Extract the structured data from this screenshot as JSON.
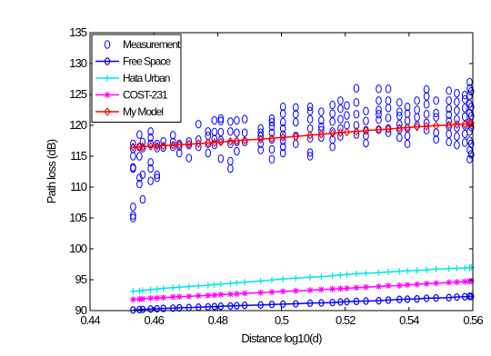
{
  "chart_data": {
    "type": "scatter",
    "title": "",
    "xlabel": "Distance log10(d)",
    "ylabel": "Path loss (dB)",
    "xlim": [
      0.44,
      0.56
    ],
    "ylim": [
      90,
      135
    ],
    "xticks": [
      0.44,
      0.46,
      0.48,
      0.5,
      0.52,
      0.54,
      0.56
    ],
    "xtick_labels": [
      "0.44",
      "0.46",
      "0.48",
      "0.5",
      "0.52",
      "0.54",
      "0.56"
    ],
    "yticks": [
      90,
      95,
      100,
      105,
      110,
      115,
      120,
      125,
      130,
      135
    ],
    "ytick_labels": [
      "90",
      "95",
      "100",
      "105",
      "110",
      "115",
      "120",
      "125",
      "130",
      "135"
    ],
    "grid": false,
    "legend_position": "top-left",
    "series": [
      {
        "name": "Measurement",
        "color": "#0000ff",
        "marker": "circle",
        "line": false,
        "points": [
          [
            0.4535,
            106.8
          ],
          [
            0.4535,
            105.4
          ],
          [
            0.4535,
            105.0
          ],
          [
            0.4535,
            113.2
          ],
          [
            0.4535,
            113.0
          ],
          [
            0.4535,
            117.0
          ],
          [
            0.4535,
            116.2
          ],
          [
            0.4535,
            115.0
          ],
          [
            0.4555,
            111.5
          ],
          [
            0.4555,
            110.5
          ],
          [
            0.4555,
            115.0
          ],
          [
            0.4555,
            116.5
          ],
          [
            0.4555,
            118.5
          ],
          [
            0.4565,
            108.0
          ],
          [
            0.4565,
            112.0
          ],
          [
            0.4565,
            116.3
          ],
          [
            0.4565,
            117.3
          ],
          [
            0.459,
            113.0
          ],
          [
            0.459,
            114.0
          ],
          [
            0.459,
            111.0
          ],
          [
            0.459,
            117.0
          ],
          [
            0.459,
            118.0
          ],
          [
            0.459,
            119.0
          ],
          [
            0.461,
            111.5
          ],
          [
            0.461,
            112.0
          ],
          [
            0.461,
            116.3
          ],
          [
            0.461,
            117.0
          ],
          [
            0.463,
            116.4
          ],
          [
            0.463,
            117.4
          ],
          [
            0.466,
            117.3
          ],
          [
            0.466,
            116.5
          ],
          [
            0.466,
            118.4
          ],
          [
            0.468,
            116.6
          ],
          [
            0.468,
            117.0
          ],
          [
            0.468,
            115.5
          ],
          [
            0.471,
            116.8
          ],
          [
            0.471,
            114.7
          ],
          [
            0.471,
            117.4
          ],
          [
            0.474,
            117.7
          ],
          [
            0.474,
            116.5
          ],
          [
            0.474,
            120.2
          ],
          [
            0.477,
            117.0
          ],
          [
            0.477,
            118.3
          ],
          [
            0.477,
            119.0
          ],
          [
            0.477,
            115.5
          ],
          [
            0.479,
            116.8
          ],
          [
            0.479,
            117.8
          ],
          [
            0.479,
            118.9
          ],
          [
            0.479,
            120.8
          ],
          [
            0.481,
            120.7
          ],
          [
            0.481,
            121.1
          ],
          [
            0.481,
            118.9
          ],
          [
            0.481,
            117.6
          ],
          [
            0.481,
            114.6
          ],
          [
            0.484,
            113.0
          ],
          [
            0.484,
            114.2
          ],
          [
            0.484,
            117.0
          ],
          [
            0.484,
            119.0
          ],
          [
            0.484,
            120.6
          ],
          [
            0.486,
            115.8
          ],
          [
            0.486,
            117.3
          ],
          [
            0.486,
            118.8
          ],
          [
            0.486,
            120.8
          ],
          [
            0.4885,
            117.3
          ],
          [
            0.4885,
            118.8
          ],
          [
            0.4885,
            121.0
          ],
          [
            0.4935,
            117.0
          ],
          [
            0.4935,
            118.2
          ],
          [
            0.4935,
            119.5
          ],
          [
            0.4935,
            116.0
          ],
          [
            0.4935,
            118.8
          ],
          [
            0.497,
            114.5
          ],
          [
            0.497,
            116.1
          ],
          [
            0.497,
            117.7
          ],
          [
            0.497,
            118.8
          ],
          [
            0.497,
            119.8
          ],
          [
            0.497,
            121.1
          ],
          [
            0.497,
            120.5
          ],
          [
            0.5005,
            115.5
          ],
          [
            0.5005,
            116.5
          ],
          [
            0.5005,
            117.5
          ],
          [
            0.5005,
            118.5
          ],
          [
            0.5005,
            119.5
          ],
          [
            0.5005,
            120.5
          ],
          [
            0.5005,
            121.9
          ],
          [
            0.5005,
            123.0
          ],
          [
            0.5045,
            117.0
          ],
          [
            0.5045,
            118.3
          ],
          [
            0.5045,
            120.5
          ],
          [
            0.5045,
            121.8
          ],
          [
            0.5045,
            122.9
          ],
          [
            0.509,
            115.0
          ],
          [
            0.509,
            115.6
          ],
          [
            0.509,
            117.9
          ],
          [
            0.509,
            119.5
          ],
          [
            0.509,
            121.0
          ],
          [
            0.509,
            122.3
          ],
          [
            0.509,
            123.0
          ],
          [
            0.5125,
            118.0
          ],
          [
            0.5125,
            119.2
          ],
          [
            0.5125,
            119.8
          ],
          [
            0.5125,
            120.8
          ],
          [
            0.5125,
            122.2
          ],
          [
            0.516,
            116.5
          ],
          [
            0.516,
            117.7
          ],
          [
            0.516,
            119.0
          ],
          [
            0.516,
            120.6
          ],
          [
            0.516,
            121.9
          ],
          [
            0.516,
            123.3
          ],
          [
            0.5185,
            118.2
          ],
          [
            0.5185,
            119.5
          ],
          [
            0.5185,
            121.0
          ],
          [
            0.5185,
            122.7
          ],
          [
            0.5185,
            124.0
          ],
          [
            0.5205,
            120.0
          ],
          [
            0.5205,
            121.6
          ],
          [
            0.5205,
            123.2
          ],
          [
            0.5235,
            118.5
          ],
          [
            0.5235,
            120.0
          ],
          [
            0.5235,
            121.8
          ],
          [
            0.5235,
            123.7
          ],
          [
            0.5235,
            126.0
          ],
          [
            0.5265,
            117.1
          ],
          [
            0.5265,
            118.3
          ],
          [
            0.5265,
            119.2
          ],
          [
            0.5265,
            120.7
          ],
          [
            0.5265,
            122.3
          ],
          [
            0.5305,
            119.3
          ],
          [
            0.5305,
            120.9
          ],
          [
            0.5305,
            122.5
          ],
          [
            0.5305,
            124.0
          ],
          [
            0.5305,
            125.9
          ],
          [
            0.5305,
            121.8
          ],
          [
            0.5335,
            118.8
          ],
          [
            0.5335,
            119.5
          ],
          [
            0.5335,
            121.2
          ],
          [
            0.5335,
            122.8
          ],
          [
            0.5335,
            124.0
          ],
          [
            0.5335,
            125.9
          ],
          [
            0.537,
            118.0
          ],
          [
            0.537,
            119.3
          ],
          [
            0.537,
            120.2
          ],
          [
            0.537,
            121.5
          ],
          [
            0.537,
            122.2
          ],
          [
            0.537,
            123.7
          ],
          [
            0.5395,
            117.0
          ],
          [
            0.5395,
            118.3
          ],
          [
            0.5395,
            119.5
          ],
          [
            0.5395,
            120.7
          ],
          [
            0.5395,
            121.9
          ],
          [
            0.5395,
            123.0
          ],
          [
            0.5425,
            120.0
          ],
          [
            0.5425,
            121.3
          ],
          [
            0.5425,
            122.5
          ],
          [
            0.5425,
            124.0
          ],
          [
            0.5455,
            119.2
          ],
          [
            0.5455,
            120.4
          ],
          [
            0.5455,
            121.8
          ],
          [
            0.5455,
            123.4
          ],
          [
            0.5455,
            124.7
          ],
          [
            0.5455,
            125.8
          ],
          [
            0.5485,
            117.7
          ],
          [
            0.5485,
            118.8
          ],
          [
            0.5485,
            121.3
          ],
          [
            0.5485,
            122.0
          ],
          [
            0.5485,
            124.0
          ],
          [
            0.5525,
            117.3
          ],
          [
            0.5525,
            118.6
          ],
          [
            0.5525,
            119.8
          ],
          [
            0.5525,
            120.7
          ],
          [
            0.5525,
            121.7
          ],
          [
            0.5525,
            122.7
          ],
          [
            0.5525,
            124.0
          ],
          [
            0.5525,
            125.6
          ],
          [
            0.555,
            116.8
          ],
          [
            0.555,
            118.2
          ],
          [
            0.555,
            119.6
          ],
          [
            0.555,
            121.0
          ],
          [
            0.555,
            122.4
          ],
          [
            0.555,
            123.8
          ],
          [
            0.555,
            125.2
          ],
          [
            0.5575,
            117.2
          ],
          [
            0.5575,
            118.6
          ],
          [
            0.5575,
            120.0
          ],
          [
            0.5575,
            121.4
          ],
          [
            0.5575,
            122.8
          ],
          [
            0.5575,
            124.2
          ],
          [
            0.5575,
            124.9
          ],
          [
            0.559,
            114.5
          ],
          [
            0.559,
            116.0
          ],
          [
            0.559,
            117.5
          ],
          [
            0.559,
            119.0
          ],
          [
            0.559,
            120.5
          ],
          [
            0.559,
            122.0
          ],
          [
            0.559,
            123.5
          ],
          [
            0.559,
            124.8
          ],
          [
            0.559,
            126.0
          ],
          [
            0.559,
            127.0
          ],
          [
            0.5595,
            115.3
          ],
          [
            0.5595,
            117.0
          ],
          [
            0.5595,
            119.7
          ],
          [
            0.5595,
            121.5
          ],
          [
            0.5595,
            123.0
          ],
          [
            0.5595,
            125.5
          ]
        ]
      },
      {
        "name": "Free Space",
        "color": "#0000ff",
        "marker": "circle-line",
        "line": true,
        "x": [
          0.4535,
          0.4555,
          0.4565,
          0.459,
          0.461,
          0.463,
          0.466,
          0.468,
          0.471,
          0.474,
          0.477,
          0.479,
          0.481,
          0.484,
          0.486,
          0.4885,
          0.4935,
          0.497,
          0.5005,
          0.5045,
          0.509,
          0.5125,
          0.516,
          0.5185,
          0.5205,
          0.5235,
          0.5265,
          0.5305,
          0.5335,
          0.537,
          0.5395,
          0.5425,
          0.5455,
          0.5485,
          0.5525,
          0.555,
          0.5575,
          0.559,
          0.5595
        ],
        "y": [
          90.1,
          90.15,
          90.2,
          90.25,
          90.3,
          90.35,
          90.4,
          90.45,
          90.5,
          90.55,
          90.6,
          90.65,
          90.7,
          90.75,
          90.8,
          90.85,
          90.9,
          91.0,
          91.05,
          91.1,
          91.2,
          91.25,
          91.3,
          91.4,
          91.45,
          91.5,
          91.55,
          91.6,
          91.7,
          91.8,
          91.85,
          91.9,
          92.0,
          92.05,
          92.1,
          92.2,
          92.25,
          92.3,
          92.3
        ]
      },
      {
        "name": "Hata Urban",
        "color": "#00e5e5",
        "marker": "plus",
        "line": true,
        "x": [
          0.4535,
          0.4555,
          0.4565,
          0.459,
          0.461,
          0.463,
          0.466,
          0.468,
          0.471,
          0.474,
          0.477,
          0.479,
          0.481,
          0.484,
          0.486,
          0.4885,
          0.4935,
          0.497,
          0.5005,
          0.5045,
          0.509,
          0.5125,
          0.516,
          0.5185,
          0.5205,
          0.5235,
          0.5265,
          0.5305,
          0.5335,
          0.537,
          0.5395,
          0.5425,
          0.5455,
          0.5485,
          0.5525,
          0.555,
          0.5575,
          0.559,
          0.5595
        ],
        "y": [
          93.1,
          93.2,
          93.25,
          93.4,
          93.5,
          93.6,
          93.7,
          93.8,
          93.9,
          94.0,
          94.1,
          94.2,
          94.3,
          94.4,
          94.5,
          94.6,
          94.8,
          94.95,
          95.1,
          95.25,
          95.4,
          95.5,
          95.65,
          95.75,
          95.85,
          95.95,
          96.05,
          96.15,
          96.25,
          96.35,
          96.45,
          96.5,
          96.6,
          96.7,
          96.8,
          96.85,
          96.9,
          96.95,
          97.0
        ]
      },
      {
        "name": "COST-231",
        "color": "#ff00ff",
        "marker": "star",
        "line": true,
        "x": [
          0.4535,
          0.4555,
          0.4565,
          0.459,
          0.461,
          0.463,
          0.466,
          0.468,
          0.471,
          0.474,
          0.477,
          0.479,
          0.481,
          0.484,
          0.486,
          0.4885,
          0.4935,
          0.497,
          0.5005,
          0.5045,
          0.509,
          0.5125,
          0.516,
          0.5185,
          0.5205,
          0.5235,
          0.5265,
          0.5305,
          0.5335,
          0.537,
          0.5395,
          0.5425,
          0.5455,
          0.5485,
          0.5525,
          0.555,
          0.5575,
          0.559,
          0.5595
        ],
        "y": [
          91.8,
          91.85,
          91.9,
          92.0,
          92.05,
          92.1,
          92.2,
          92.25,
          92.3,
          92.4,
          92.45,
          92.5,
          92.6,
          92.65,
          92.7,
          92.8,
          92.9,
          93.0,
          93.1,
          93.2,
          93.3,
          93.4,
          93.5,
          93.55,
          93.6,
          93.7,
          93.8,
          93.9,
          94.0,
          94.05,
          94.15,
          94.25,
          94.35,
          94.45,
          94.55,
          94.6,
          94.7,
          94.75,
          94.8
        ]
      },
      {
        "name": "My Model",
        "color": "#ff0000",
        "marker": "diamond",
        "line": true,
        "x": [
          0.4535,
          0.4555,
          0.4565,
          0.459,
          0.461,
          0.463,
          0.466,
          0.468,
          0.471,
          0.474,
          0.477,
          0.479,
          0.481,
          0.484,
          0.486,
          0.4885,
          0.4935,
          0.497,
          0.5005,
          0.5045,
          0.509,
          0.5125,
          0.516,
          0.5185,
          0.5205,
          0.5235,
          0.5265,
          0.5305,
          0.5335,
          0.537,
          0.5395,
          0.5425,
          0.5455,
          0.5485,
          0.5525,
          0.555,
          0.5575,
          0.559,
          0.5595
        ],
        "y": [
          116.5,
          116.5,
          116.55,
          116.6,
          116.65,
          116.7,
          116.8,
          116.85,
          116.95,
          117.05,
          117.15,
          117.2,
          117.3,
          117.4,
          117.5,
          117.6,
          117.75,
          117.9,
          118.05,
          118.2,
          118.4,
          118.55,
          118.7,
          118.8,
          118.9,
          119.0,
          119.15,
          119.3,
          119.4,
          119.55,
          119.65,
          119.75,
          119.85,
          119.95,
          120.05,
          120.15,
          120.2,
          120.3,
          120.35
        ]
      }
    ]
  }
}
